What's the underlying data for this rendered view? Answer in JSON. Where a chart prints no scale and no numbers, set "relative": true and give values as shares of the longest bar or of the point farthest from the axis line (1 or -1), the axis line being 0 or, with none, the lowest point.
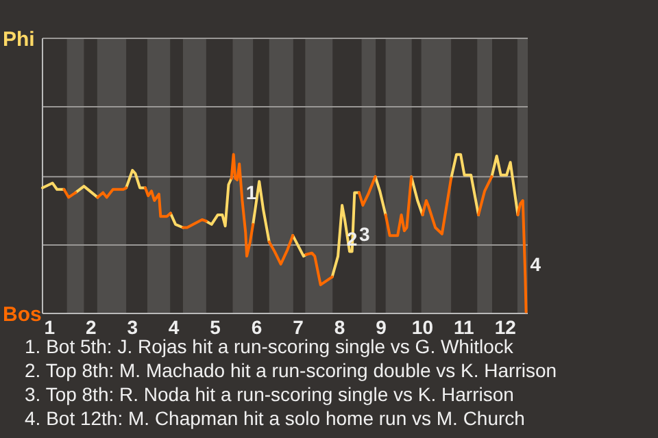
{
  "chart_data": {
    "type": "line",
    "relative": true,
    "x": [
      0.83,
      1.07,
      1.18,
      1.35,
      1.46,
      1.63,
      1.83,
      2.16,
      2.29,
      2.38,
      2.53,
      2.78,
      2.85,
      3.0,
      3.07,
      3.18,
      3.31,
      3.38,
      3.46,
      3.53,
      3.64,
      3.68,
      3.83,
      3.92,
      4.04,
      4.22,
      4.32,
      4.68,
      4.78,
      4.91,
      5.06,
      5.17,
      5.24,
      5.32,
      5.39,
      5.44,
      5.48,
      5.53,
      5.58,
      5.65,
      5.73,
      5.76,
      5.84,
      5.91,
      6.06,
      6.16,
      6.3,
      6.43,
      6.58,
      6.74,
      6.87,
      7.13,
      7.19,
      7.33,
      7.4,
      7.54,
      7.82,
      7.96,
      8.06,
      8.13,
      8.24,
      8.3,
      8.36,
      8.47,
      8.56,
      8.69,
      8.86,
      8.97,
      9.11,
      9.21,
      9.4,
      9.49,
      9.56,
      9.62,
      9.73,
      9.88,
      10.0,
      10.09,
      10.15,
      10.31,
      10.47,
      10.69,
      10.82,
      10.92,
      11.01,
      11.17,
      11.35,
      11.5,
      11.67,
      11.79,
      11.89,
      12.03,
      12.12,
      12.3,
      12.36,
      12.42,
      12.48,
      12.5
    ],
    "series": [
      {
        "color": "#ffd966",
        "values": [
          0.79,
          0.82,
          0.78,
          0.78,
          null,
          0.76,
          0.8,
          0.73,
          null,
          null,
          null,
          null,
          0.79,
          0.9,
          0.88,
          0.79,
          0.79,
          null,
          null,
          null,
          null,
          null,
          null,
          0.63,
          0.56,
          0.54,
          null,
          null,
          0.58,
          0.56,
          0.62,
          0.62,
          0.55,
          0.81,
          0.85,
          null,
          null,
          null,
          null,
          null,
          null,
          null,
          null,
          0.56,
          0.83,
          0.65,
          0.45,
          null,
          null,
          null,
          0.49,
          0.36,
          0.37,
          null,
          null,
          null,
          0.23,
          0.36,
          0.68,
          0.58,
          0.39,
          0.39,
          0.76,
          0.76,
          null,
          null,
          0.86,
          0.77,
          0.62,
          null,
          null,
          null,
          null,
          null,
          0.86,
          0.71,
          0.62,
          null,
          null,
          null,
          null,
          0.85,
          1,
          1,
          0.87,
          0.87,
          0.62,
          null,
          0.86,
          0.99,
          0.87,
          0.87,
          0.95,
          0.62,
          null,
          null,
          null,
          null
        ]
      },
      {
        "color": "#ff6a00",
        "values": [
          null,
          null,
          null,
          0.78,
          0.73,
          0.76,
          null,
          0.73,
          0.76,
          0.73,
          0.78,
          0.78,
          0.79,
          null,
          null,
          null,
          0.79,
          0.74,
          0.77,
          0.71,
          0.75,
          0.61,
          0.61,
          0.63,
          null,
          0.54,
          0.54,
          0.59,
          0.58,
          null,
          null,
          null,
          null,
          null,
          0.85,
          1,
          0.85,
          0.84,
          0.94,
          0.71,
          0.51,
          0.36,
          0.45,
          0.56,
          null,
          null,
          0.45,
          0.39,
          0.31,
          0.4,
          0.49,
          null,
          0.37,
          0.38,
          0.36,
          0.18,
          0.23,
          null,
          null,
          null,
          null,
          null,
          null,
          0.76,
          0.68,
          0.75,
          0.86,
          null,
          0.62,
          0.49,
          0.49,
          0.62,
          0.52,
          0.54,
          0.86,
          null,
          0.62,
          0.71,
          0.67,
          0.54,
          0.5,
          0.85,
          null,
          null,
          null,
          null,
          0.62,
          0.77,
          0.86,
          null,
          null,
          null,
          null,
          0.62,
          0.69,
          0.71,
          0.23,
          0.01
        ]
      }
    ],
    "xlim": [
      0.83,
      12.54
    ],
    "xticks": [
      1,
      2,
      3,
      4,
      5,
      6,
      7,
      8,
      9,
      10,
      11,
      12
    ],
    "ref_lines": [
      {
        "axis": "y",
        "value": 0.43,
        "color": "#9a9896"
      },
      {
        "axis": "y",
        "value": 0.86,
        "color": "#9a9896"
      },
      {
        "axis": "y",
        "value": 1.3,
        "color": "#9a9896"
      },
      {
        "axis": "y",
        "value": 1.73,
        "color": "#9a9896"
      }
    ],
    "bands": [
      {
        "axis": "x",
        "from": 1.42,
        "to": 1.83,
        "color": "#4f4d4b"
      },
      {
        "axis": "x",
        "from": 2.15,
        "to": 2.85,
        "color": "#4f4d4b"
      },
      {
        "axis": "x",
        "from": 3.36,
        "to": 3.91,
        "color": "#4f4d4b"
      },
      {
        "axis": "x",
        "from": 4.22,
        "to": 4.78,
        "color": "#4f4d4b"
      },
      {
        "axis": "x",
        "from": 5.42,
        "to": 5.91,
        "color": "#4f4d4b"
      },
      {
        "axis": "x",
        "from": 6.3,
        "to": 6.88,
        "color": "#4f4d4b"
      },
      {
        "axis": "x",
        "from": 7.17,
        "to": 7.83,
        "color": "#4f4d4b"
      },
      {
        "axis": "x",
        "from": 8.53,
        "to": 8.87,
        "color": "#4f4d4b"
      },
      {
        "axis": "x",
        "from": 9.11,
        "to": 9.74,
        "color": "#4f4d4b"
      },
      {
        "axis": "x",
        "from": 9.97,
        "to": 10.69,
        "color": "#4f4d4b"
      },
      {
        "axis": "x",
        "from": 11.32,
        "to": 11.68,
        "color": "#4f4d4b"
      },
      {
        "axis": "x",
        "from": 12.29,
        "to": 12.54,
        "color": "#4f4d4b"
      }
    ],
    "annotations": [
      "Phi",
      "Bos",
      {
        "text": "1",
        "x": 5.64,
        "y": 0.76
      },
      {
        "text": "2",
        "x": 8.07,
        "y": 0.47
      },
      {
        "text": "3",
        "x": 8.37,
        "y": 0.5
      },
      {
        "text": "4",
        "x": 12.5,
        "y": 0.31
      },
      "1. Bot 5th: J. Rojas hit a run-scoring single vs G. Whitlock",
      "2. Top 8th: M. Machado hit a run-scoring double vs K. Harrison",
      "3. Top 8th: R. Noda hit a run-scoring single vs K. Harrison",
      "4. Bot 12th: M. Chapman hit a solo home run vs M. Church"
    ]
  }
}
